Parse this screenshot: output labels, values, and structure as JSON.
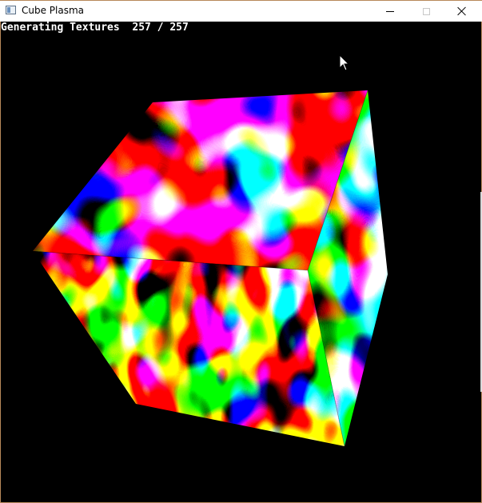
{
  "window": {
    "title": "Cube Plasma",
    "border_color": "#b8895a",
    "icons": {
      "app": "app-window-icon",
      "minimize": "minimize-icon",
      "maximize": "maximize-icon",
      "close": "close-icon"
    }
  },
  "viewport": {
    "background": "#000000",
    "status_label": "Generating Textures",
    "progress_done": "257",
    "progress_separator": "/",
    "progress_total": "257"
  },
  "scene": {
    "object": "rotating cube with plasma textures",
    "palette": [
      "#ff0000",
      "#ffff00",
      "#00ff00",
      "#00ffff",
      "#0000ff",
      "#ff00ff"
    ]
  },
  "cursor": {
    "icon": "mouse-pointer-icon"
  }
}
